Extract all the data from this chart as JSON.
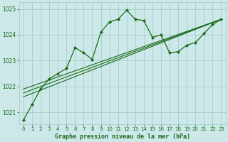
{
  "title": "Graphe pression niveau de la mer (hPa)",
  "bg_color": "#cce8e8",
  "grid_color": "#aacccc",
  "line_color": "#1a6b1a",
  "xlim": [
    -0.5,
    23.5
  ],
  "ylim": [
    1020.55,
    1025.25
  ],
  "yticks": [
    1021,
    1022,
    1023,
    1024,
    1025
  ],
  "xticks": [
    0,
    1,
    2,
    3,
    4,
    5,
    6,
    7,
    8,
    9,
    10,
    11,
    12,
    13,
    14,
    15,
    16,
    17,
    18,
    19,
    20,
    21,
    22,
    23
  ],
  "main_x": [
    0,
    1,
    2,
    3,
    4,
    5,
    6,
    7,
    8,
    9,
    10,
    11,
    12,
    13,
    14,
    15,
    16,
    17,
    18,
    19,
    20,
    21,
    22,
    23
  ],
  "main_y": [
    1020.7,
    1021.3,
    1021.9,
    1022.3,
    1022.5,
    1022.7,
    1023.5,
    1023.3,
    1023.05,
    1024.1,
    1024.5,
    1024.6,
    1024.95,
    1024.6,
    1024.55,
    1023.9,
    1024.0,
    1023.3,
    1023.35,
    1023.6,
    1023.7,
    1024.05,
    1024.4,
    1024.6
  ],
  "trend1_x": [
    0,
    23
  ],
  "trend1_y": [
    1021.9,
    1024.6
  ],
  "trend2_x": [
    0,
    23
  ],
  "trend2_y": [
    1021.75,
    1024.6
  ],
  "trend3_x": [
    0,
    23
  ],
  "trend3_y": [
    1021.6,
    1024.6
  ]
}
